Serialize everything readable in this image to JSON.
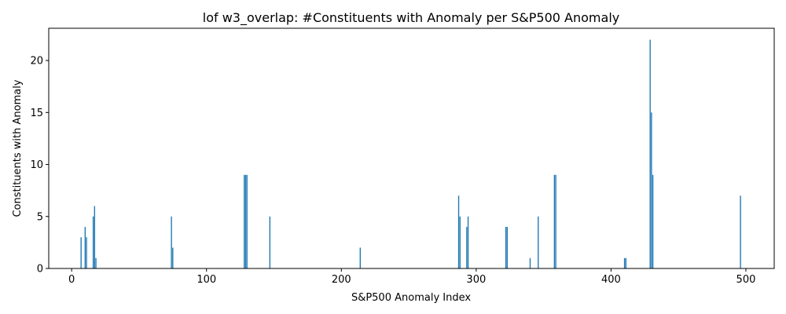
{
  "chart_data": {
    "type": "bar",
    "title": "lof w3_overlap: #Constituents with Anomaly per S&P500 Anomaly",
    "xlabel": "S&P500 Anomaly Index",
    "ylabel": "Constituents with Anomaly",
    "xlim": [
      -17,
      521
    ],
    "ylim": [
      0,
      23.1
    ],
    "xticks": [
      0,
      100,
      200,
      300,
      400,
      500
    ],
    "yticks": [
      0,
      5,
      10,
      15,
      20
    ],
    "bar_color": "#1f77b4",
    "bar_width": 0.8,
    "x": [
      7,
      10,
      11,
      16,
      17,
      18,
      74,
      75,
      128,
      129,
      130,
      147,
      214,
      287,
      288,
      293,
      294,
      322,
      323,
      340,
      346,
      358,
      359,
      410,
      411,
      429,
      430,
      431,
      496
    ],
    "values": [
      3,
      4,
      3,
      5,
      6,
      1,
      5,
      2,
      9,
      9,
      9,
      5,
      2,
      7,
      5,
      4,
      5,
      4,
      4,
      1,
      5,
      9,
      9,
      1,
      1,
      22,
      15,
      9,
      7
    ]
  }
}
